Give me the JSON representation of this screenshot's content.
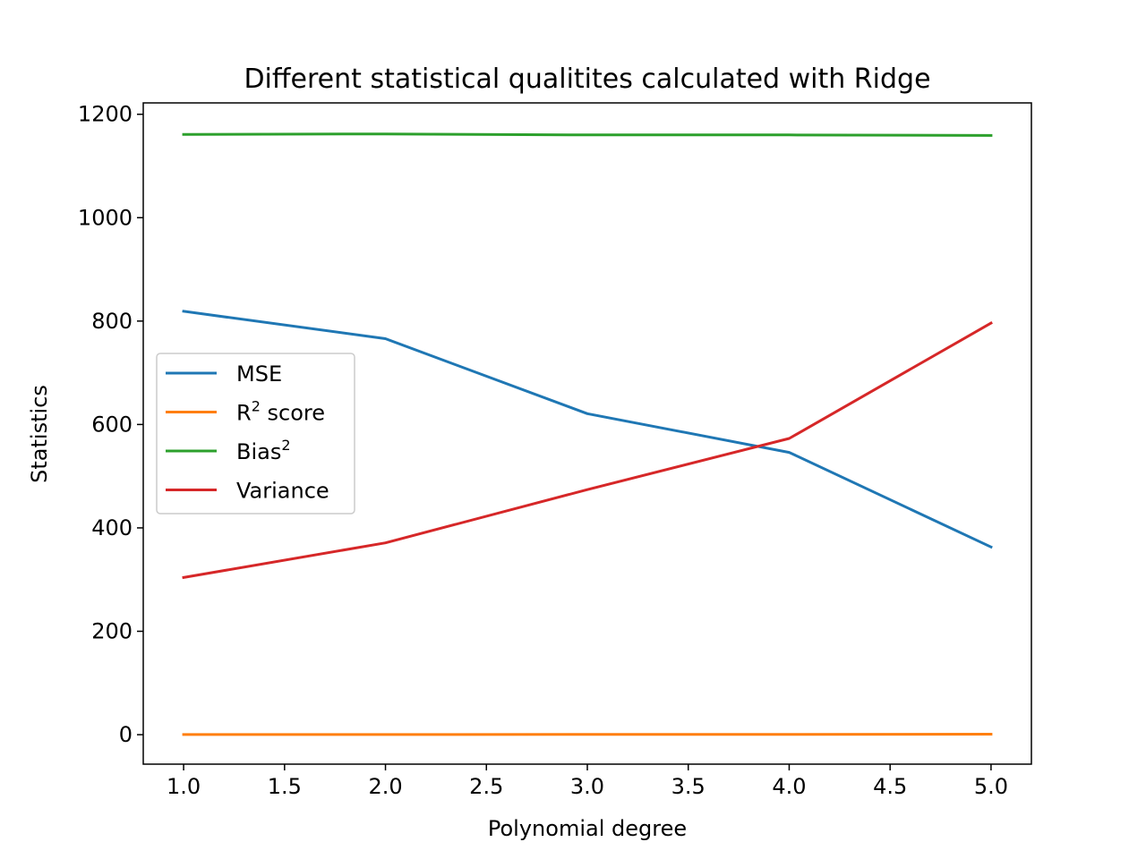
{
  "chart_data": {
    "type": "line",
    "title": "Different statistical qualitites calculated with Ridge",
    "xlabel": "Polynomial degree",
    "ylabel": "Statistics",
    "xlim": [
      0.8,
      5.2
    ],
    "ylim": [
      -57,
      1222
    ],
    "xticks": [
      1.0,
      1.5,
      2.0,
      2.5,
      3.0,
      3.5,
      4.0,
      4.5,
      5.0
    ],
    "xtick_labels": [
      "1.0",
      "1.5",
      "2.0",
      "2.5",
      "3.0",
      "3.5",
      "4.0",
      "4.5",
      "5.0"
    ],
    "yticks": [
      0,
      200,
      400,
      600,
      800,
      1000,
      1200
    ],
    "ytick_labels": [
      "0",
      "200",
      "400",
      "600",
      "800",
      "1000",
      "1200"
    ],
    "grid": false,
    "legend_position": "center-left",
    "x": [
      1,
      2,
      3,
      4,
      5
    ],
    "series": [
      {
        "name": "MSE",
        "label_main": "MSE",
        "label_sup": "",
        "label_tail": "",
        "color": "#1f77b4",
        "values": [
          819,
          766,
          621,
          546,
          363
        ]
      },
      {
        "name": "R² score",
        "label_main": "R",
        "label_sup": "2",
        "label_tail": " score",
        "color": "#ff7f0e",
        "values": [
          0.3,
          0.3,
          0.5,
          0.6,
          0.9
        ]
      },
      {
        "name": "Bias²",
        "label_main": "Bias",
        "label_sup": "2",
        "label_tail": "",
        "color": "#2ca02c",
        "values": [
          1161,
          1162,
          1160,
          1160,
          1159
        ]
      },
      {
        "name": "Variance",
        "label_main": "Variance",
        "label_sup": "",
        "label_tail": "",
        "color": "#d62728",
        "values": [
          304,
          371,
          474,
          573,
          796
        ]
      }
    ]
  }
}
